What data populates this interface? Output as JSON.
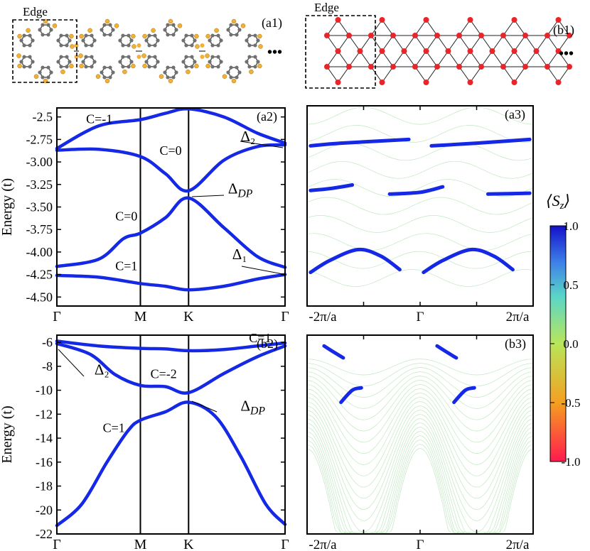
{
  "structure_a1": {
    "edge_label": "Edge",
    "panel_label": "(a1)",
    "ellipsis": "•••"
  },
  "structure_b1": {
    "edge_label": "Edge",
    "panel_label": "(b1)",
    "ellipsis": "•••"
  },
  "colors": {
    "band": "#1428e6",
    "edge_states_faint": "#8fd48f",
    "atom_yellow": "#f2b135",
    "atom_gray": "#707070",
    "atom_red": "#e8262a"
  },
  "colorbar": {
    "title": "⟨S_z⟩",
    "tick_labels": [
      "1.0",
      "0.5",
      "0.0",
      "-0.5",
      "-1.0"
    ],
    "range": [
      -1.0,
      1.0
    ],
    "stops": [
      "#ff1a4d",
      "#f4a020",
      "#b9e65a",
      "#5ad6c8",
      "#3c7de8",
      "#1410c8"
    ]
  },
  "chart_data": [
    {
      "id": "a2",
      "type": "line",
      "panel_label": "(a2)",
      "ylabel": "Energy (t)",
      "ylim": [
        -4.6,
        -2.4
      ],
      "yticks": [
        "-2.5",
        "-2.75",
        "-3.00",
        "-3.25",
        "-3.50",
        "-3.75",
        "-4.00",
        "-4.25",
        "-4.50"
      ],
      "ytick_values": [
        -2.5,
        -2.75,
        -3.0,
        -3.25,
        -3.5,
        -3.75,
        -4.0,
        -4.25,
        -4.5
      ],
      "x_labels": [
        "Γ",
        "M",
        "K",
        "Γ"
      ],
      "x_ticks": [
        0,
        1,
        1.577,
        2.732
      ],
      "xlim": [
        0,
        2.732
      ],
      "series": [
        {
          "values": [
            [
              0,
              -2.85
            ],
            [
              0.5,
              -2.6
            ],
            [
              1,
              -2.53
            ],
            [
              1.3,
              -2.46
            ],
            [
              1.577,
              -2.41
            ],
            [
              2.0,
              -2.5
            ],
            [
              2.4,
              -2.68
            ],
            [
              2.732,
              -2.79
            ]
          ]
        },
        {
          "values": [
            [
              0,
              -2.87
            ],
            [
              0.5,
              -2.86
            ],
            [
              1,
              -2.94
            ],
            [
              1.3,
              -3.13
            ],
            [
              1.577,
              -3.32
            ],
            [
              2.0,
              -2.98
            ],
            [
              2.4,
              -2.83
            ],
            [
              2.732,
              -2.81
            ]
          ]
        },
        {
          "values": [
            [
              0,
              -4.16
            ],
            [
              0.5,
              -4.08
            ],
            [
              0.8,
              -3.85
            ],
            [
              1,
              -3.79
            ],
            [
              1.3,
              -3.62
            ],
            [
              1.577,
              -3.4
            ],
            [
              2.0,
              -3.73
            ],
            [
              2.4,
              -4.05
            ],
            [
              2.732,
              -4.17
            ]
          ]
        },
        {
          "values": [
            [
              0,
              -4.26
            ],
            [
              0.5,
              -4.28
            ],
            [
              1,
              -4.35
            ],
            [
              1.3,
              -4.38
            ],
            [
              1.577,
              -4.42
            ],
            [
              2.0,
              -4.38
            ],
            [
              2.4,
              -4.3
            ],
            [
              2.732,
              -4.25
            ]
          ]
        }
      ],
      "annotations": [
        {
          "text": "C=-1",
          "x": 0.35,
          "y": -2.57
        },
        {
          "text": "C=0",
          "x": 1.23,
          "y": -2.92
        },
        {
          "text": "C=0",
          "x": 0.7,
          "y": -3.65
        },
        {
          "text": "C=1",
          "x": 0.7,
          "y": -4.2
        },
        {
          "text": "Δ₂",
          "x": 2.2,
          "y": -2.77
        },
        {
          "text": "Δ_DP",
          "x": 2.05,
          "y": -3.35
        },
        {
          "text": "Δ₁",
          "x": 2.1,
          "y": -4.08
        }
      ]
    },
    {
      "id": "b2",
      "type": "line",
      "panel_label": "(b2)",
      "ylabel": "Energy (t)",
      "ylim": [
        -22,
        -5.4
      ],
      "yticks": [
        "-6",
        "-8",
        "-10",
        "-12",
        "-14",
        "-16",
        "-18",
        "-20",
        "-22"
      ],
      "ytick_values": [
        -6,
        -8,
        -10,
        -12,
        -14,
        -16,
        -18,
        -20,
        -22
      ],
      "x_labels": [
        "Γ",
        "M",
        "K",
        "Γ"
      ],
      "x_ticks": [
        0,
        1,
        1.577,
        2.732
      ],
      "xlim": [
        0,
        2.732
      ],
      "series": [
        {
          "values": [
            [
              0,
              -5.9
            ],
            [
              0.5,
              -6.3
            ],
            [
              1,
              -6.5
            ],
            [
              1.3,
              -6.55
            ],
            [
              1.577,
              -6.7
            ],
            [
              2.0,
              -6.6
            ],
            [
              2.4,
              -6.3
            ],
            [
              2.732,
              -6.05
            ]
          ]
        },
        {
          "values": [
            [
              0,
              -6.1
            ],
            [
              0.4,
              -7.0
            ],
            [
              0.7,
              -8.7
            ],
            [
              1,
              -9.6
            ],
            [
              1.3,
              -9.7
            ],
            [
              1.577,
              -10.2
            ],
            [
              2.0,
              -8.6
            ],
            [
              2.4,
              -7.2
            ],
            [
              2.732,
              -6.3
            ]
          ]
        },
        {
          "values": [
            [
              0,
              -21.3
            ],
            [
              0.3,
              -19.5
            ],
            [
              0.6,
              -16.0
            ],
            [
              0.85,
              -13.4
            ],
            [
              1,
              -12.5
            ],
            [
              1.3,
              -11.8
            ],
            [
              1.577,
              -11.0
            ],
            [
              1.9,
              -12.2
            ],
            [
              2.2,
              -15.5
            ],
            [
              2.5,
              -19.5
            ],
            [
              2.732,
              -21.2
            ]
          ]
        }
      ],
      "annotations": [
        {
          "text": "C=1",
          "x": 2.3,
          "y": -6.0
        },
        {
          "text": "C=-2",
          "x": 1.12,
          "y": -9.0
        },
        {
          "text": "C=1",
          "x": 0.55,
          "y": -13.5
        },
        {
          "text": "Δ₂",
          "x": 0.45,
          "y": -8.7
        },
        {
          "text": "Δ_DP",
          "x": 2.2,
          "y": -11.7
        }
      ]
    },
    {
      "id": "a3",
      "type": "line",
      "panel_label": "(a3)",
      "x_labels": [
        "-2π/a",
        "Γ",
        "2π/a"
      ],
      "xlim": [
        -1,
        1
      ],
      "edge_states": [
        {
          "values": [
            [
              -0.97,
              -2.84
            ],
            [
              -0.7,
              -2.81
            ],
            [
              -0.1,
              -2.77
            ]
          ]
        },
        {
          "values": [
            [
              0.1,
              -2.84
            ],
            [
              0.5,
              -2.81
            ],
            [
              0.97,
              -2.77
            ]
          ]
        },
        {
          "values": [
            [
              -0.97,
              -3.33
            ],
            [
              -0.8,
              -3.31
            ],
            [
              -0.6,
              -3.27
            ]
          ]
        },
        {
          "values": [
            [
              -0.27,
              -3.37
            ],
            [
              0.0,
              -3.35
            ],
            [
              0.2,
              -3.29
            ]
          ]
        },
        {
          "values": [
            [
              0.6,
              -3.37
            ],
            [
              0.97,
              -3.36
            ]
          ]
        },
        {
          "values": [
            [
              -0.97,
              -4.23
            ],
            [
              -0.8,
              -4.1
            ],
            [
              -0.55,
              -3.98
            ],
            [
              -0.35,
              -4.05
            ],
            [
              -0.18,
              -4.2
            ]
          ]
        },
        {
          "values": [
            [
              0.03,
              -4.23
            ],
            [
              0.2,
              -4.1
            ],
            [
              0.45,
              -3.98
            ],
            [
              0.65,
              -4.05
            ],
            [
              0.82,
              -4.2
            ]
          ]
        }
      ]
    },
    {
      "id": "b3",
      "type": "line",
      "panel_label": "(b3)",
      "x_labels": [
        "-2π/a",
        "Γ",
        "2π/a"
      ],
      "xlim": [
        -1,
        1
      ],
      "edge_states": [
        {
          "values": [
            [
              -0.85,
              -6.3
            ],
            [
              -0.75,
              -6.9
            ],
            [
              -0.68,
              -7.3
            ]
          ]
        },
        {
          "values": [
            [
              0.15,
              -6.3
            ],
            [
              0.25,
              -6.9
            ],
            [
              0.32,
              -7.3
            ]
          ]
        },
        {
          "values": [
            [
              -0.7,
              -11.0
            ],
            [
              -0.6,
              -10.0
            ],
            [
              -0.52,
              -9.8
            ]
          ]
        },
        {
          "values": [
            [
              0.3,
              -11.0
            ],
            [
              0.4,
              -10.0
            ],
            [
              0.48,
              -9.8
            ]
          ]
        }
      ]
    }
  ]
}
